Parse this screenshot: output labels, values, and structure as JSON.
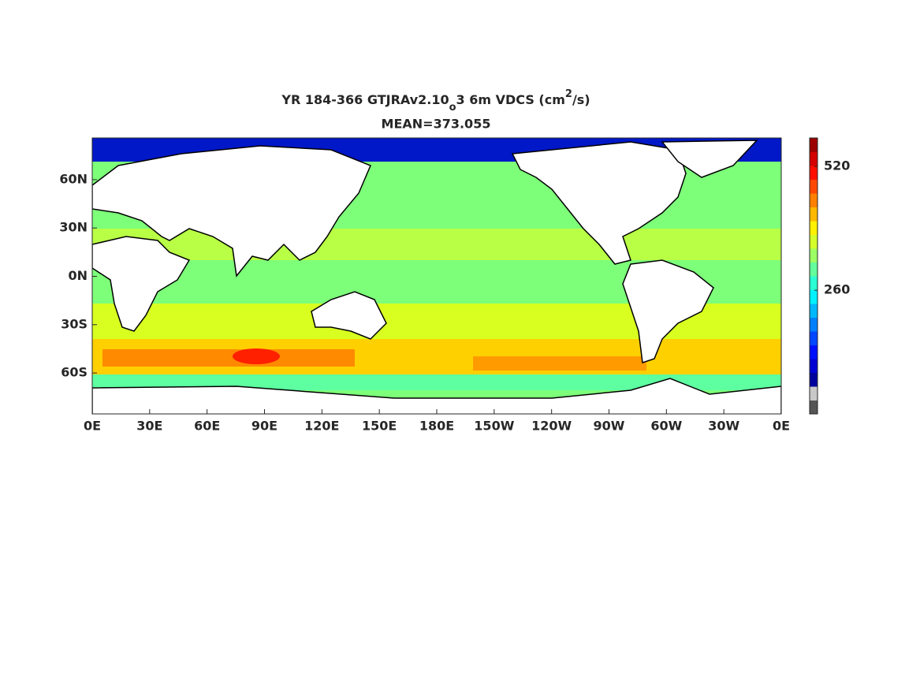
{
  "title": {
    "parts": [
      "YR 184-366 GTJRAv2.10",
      "o",
      "3 6m VDCS (cm",
      "2",
      "/s)"
    ],
    "subtitle": "MEAN=373.055"
  },
  "map": {
    "xticks": [
      "0E",
      "30E",
      "60E",
      "90E",
      "120E",
      "150E",
      "180E",
      "150W",
      "120W",
      "90W",
      "60W",
      "30W",
      "0E"
    ],
    "yticks": [
      "60N",
      "30N",
      "0N",
      "30S",
      "60S"
    ]
  },
  "colorbar": {
    "clim": [
      0,
      580
    ],
    "ticks": [
      260,
      520
    ]
  }
}
